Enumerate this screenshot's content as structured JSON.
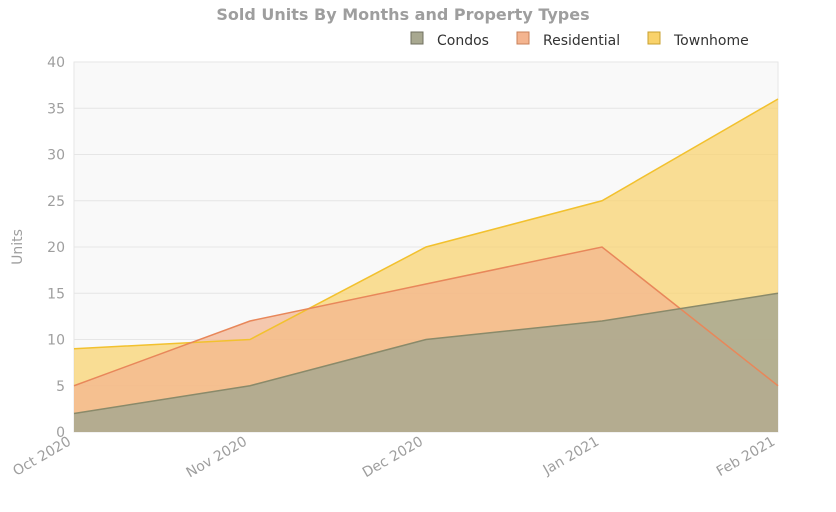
{
  "chart_data": {
    "type": "area",
    "title": "Sold Units By Months and Property Types",
    "ylabel": "Units",
    "xlabel": "",
    "categories": [
      "Oct 2020",
      "Nov 2020",
      "Dec 2020",
      "Jan 2021",
      "Feb 2021"
    ],
    "ylim": [
      0,
      40
    ],
    "yticks": [
      "0",
      "5",
      "10",
      "15",
      "20",
      "25",
      "30",
      "35",
      "40"
    ],
    "grid": true,
    "legend_position": "top-right",
    "series": [
      {
        "name": "Condos",
        "values": [
          2,
          5,
          10,
          12,
          15
        ],
        "color": "#8a8a6a",
        "fill": "#a8a890"
      },
      {
        "name": "Residential",
        "values": [
          5,
          12,
          16,
          20,
          5
        ],
        "color": "#e8875a",
        "fill": "#f4b48f"
      },
      {
        "name": "Townhome",
        "values": [
          9,
          10,
          20,
          25,
          36
        ],
        "color": "#f2c12e",
        "fill": "#f9d26a"
      }
    ]
  }
}
